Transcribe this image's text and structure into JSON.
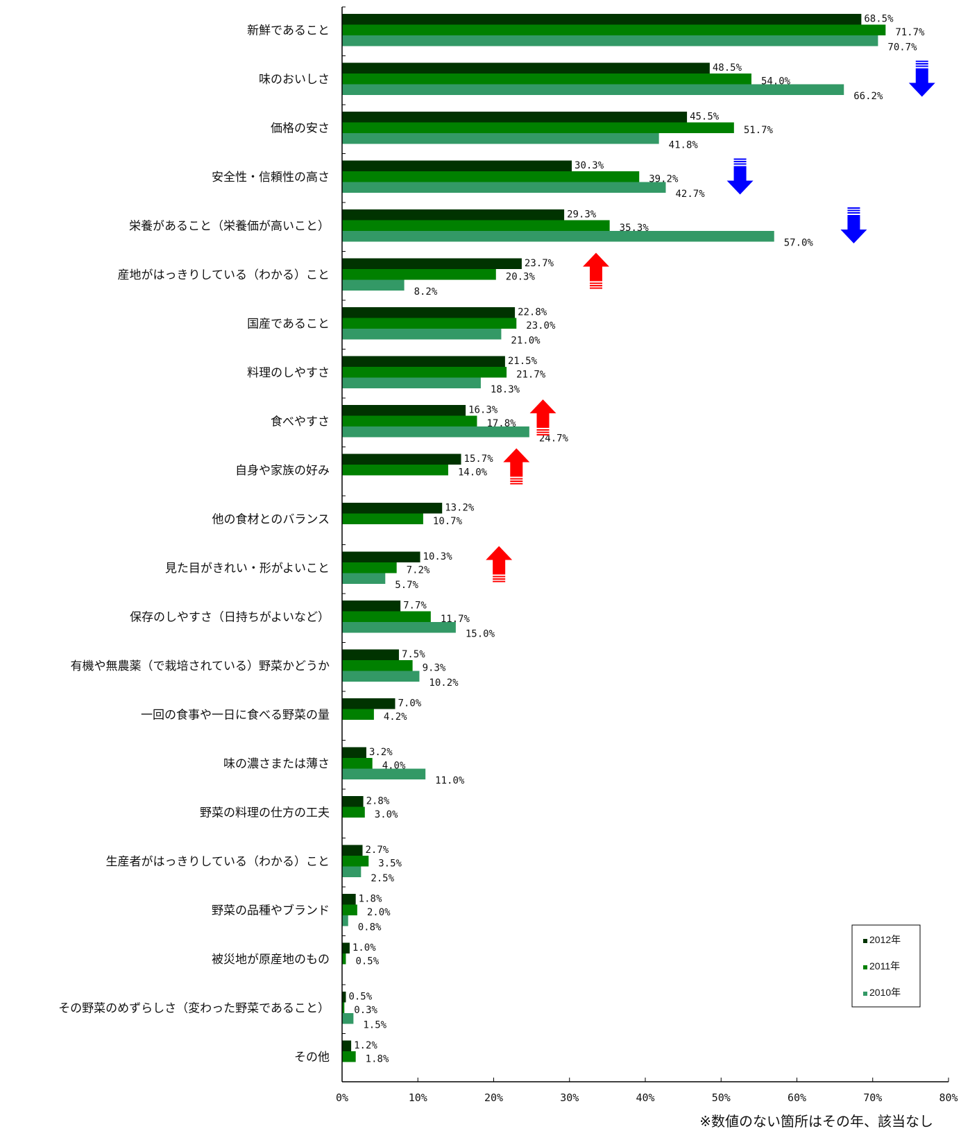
{
  "chart_data": {
    "type": "bar",
    "orientation": "horizontal",
    "categories": [
      "新鮮であること",
      "味のおいしさ",
      "価格の安さ",
      "安全性・信頼性の高さ",
      "栄養があること（栄養価が高いこと）",
      "産地がはっきりしている（わかる）こと",
      "国産であること",
      "料理のしやすさ",
      "食べやすさ",
      "自身や家族の好み",
      "他の食材とのバランス",
      "見た目がきれい・形がよいこと",
      "保存のしやすさ（日持ちがよいなど）",
      "有機や無農薬（で栽培されている）野菜かどうか",
      "一回の食事や一日に食べる野菜の量",
      "味の濃さまたは薄さ",
      "野菜の料理の仕方の工夫",
      "生産者がはっきりしている（わかる）こと",
      "野菜の品種やブランド",
      "被災地が原産地のもの",
      "その野菜のめずらしさ（変わった野菜であること）",
      "その他"
    ],
    "series": [
      {
        "name": "2012年",
        "color": "#003300",
        "values": [
          68.5,
          48.5,
          45.5,
          30.3,
          29.3,
          23.7,
          22.8,
          21.5,
          16.3,
          15.7,
          13.2,
          10.3,
          7.7,
          7.5,
          7.0,
          3.2,
          2.8,
          2.7,
          1.8,
          1.0,
          0.5,
          1.2
        ],
        "labels": [
          "68.5%",
          "48.5%",
          "45.5%",
          "30.3%",
          "29.3%",
          "23.7%",
          "22.8%",
          "21.5%",
          "16.3%",
          "15.7%",
          "13.2%",
          "10.3%",
          "7.7%",
          "7.5%",
          "7.0%",
          "3.2%",
          "2.8%",
          "2.7%",
          "1.8%",
          "1.0%",
          "0.5%",
          "1.2%"
        ]
      },
      {
        "name": "2011年",
        "color": "#008000",
        "values": [
          71.7,
          54.0,
          51.7,
          39.2,
          35.3,
          20.3,
          23.0,
          21.7,
          17.8,
          14.0,
          10.7,
          7.2,
          11.7,
          9.3,
          4.2,
          4.0,
          3.0,
          3.5,
          2.0,
          0.5,
          0.3,
          1.8
        ],
        "labels": [
          "71.7%",
          "54.0%",
          "51.7%",
          "39.2%",
          "35.3%",
          "20.3%",
          "23.0%",
          "21.7%",
          "17.8%",
          "14.0%",
          "10.7%",
          "7.2%",
          "11.7%",
          "9.3%",
          "4.2%",
          "4.0%",
          "3.0%",
          "3.5%",
          "2.0%",
          "0.5%",
          "0.3%",
          "1.8%"
        ]
      },
      {
        "name": "2010年",
        "color": "#339966",
        "values": [
          70.7,
          66.2,
          41.8,
          42.7,
          57.0,
          8.2,
          21.0,
          18.3,
          24.7,
          null,
          null,
          5.7,
          15.0,
          10.2,
          null,
          11.0,
          null,
          2.5,
          0.8,
          null,
          1.5,
          null
        ],
        "labels": [
          "70.7%",
          "66.2%",
          "41.8%",
          "42.7%",
          "57.0%",
          "8.2%",
          "21.0%",
          "18.3%",
          "24.7%",
          null,
          null,
          "5.7%",
          "15.0%",
          "10.2%",
          null,
          "11.0%",
          null,
          "2.5%",
          "0.8%",
          null,
          "1.5%",
          null
        ]
      }
    ],
    "xlim": [
      0,
      80
    ],
    "x_ticks": [
      "0%",
      "10%",
      "20%",
      "30%",
      "40%",
      "50%",
      "60%",
      "70%",
      "80%"
    ],
    "grid": false,
    "legend_placement": "bottom-right",
    "annotations": {
      "note": "※数値のない箇所はその年、該当なし",
      "down_arrows": [
        {
          "category": "味のおいしさ",
          "x": 76.5,
          "color": "#0000ff"
        },
        {
          "category": "安全性・信頼性の高さ",
          "x": 52.5,
          "color": "#0000ff"
        },
        {
          "category": "栄養があること（栄養価が高いこと）",
          "x": 67.5,
          "color": "#0000ff"
        }
      ],
      "up_arrows": [
        {
          "category": "産地がはっきりしている（わかる）こと",
          "x": 33.5,
          "color": "#ff0000"
        },
        {
          "category": "食べやすさ",
          "x": 26.5,
          "color": "#ff0000"
        },
        {
          "category": "自身や家族の好み",
          "x": 23.0,
          "color": "#ff0000"
        },
        {
          "category": "見た目がきれい・形がよいこと",
          "x": 20.7,
          "color": "#ff0000"
        }
      ]
    }
  }
}
